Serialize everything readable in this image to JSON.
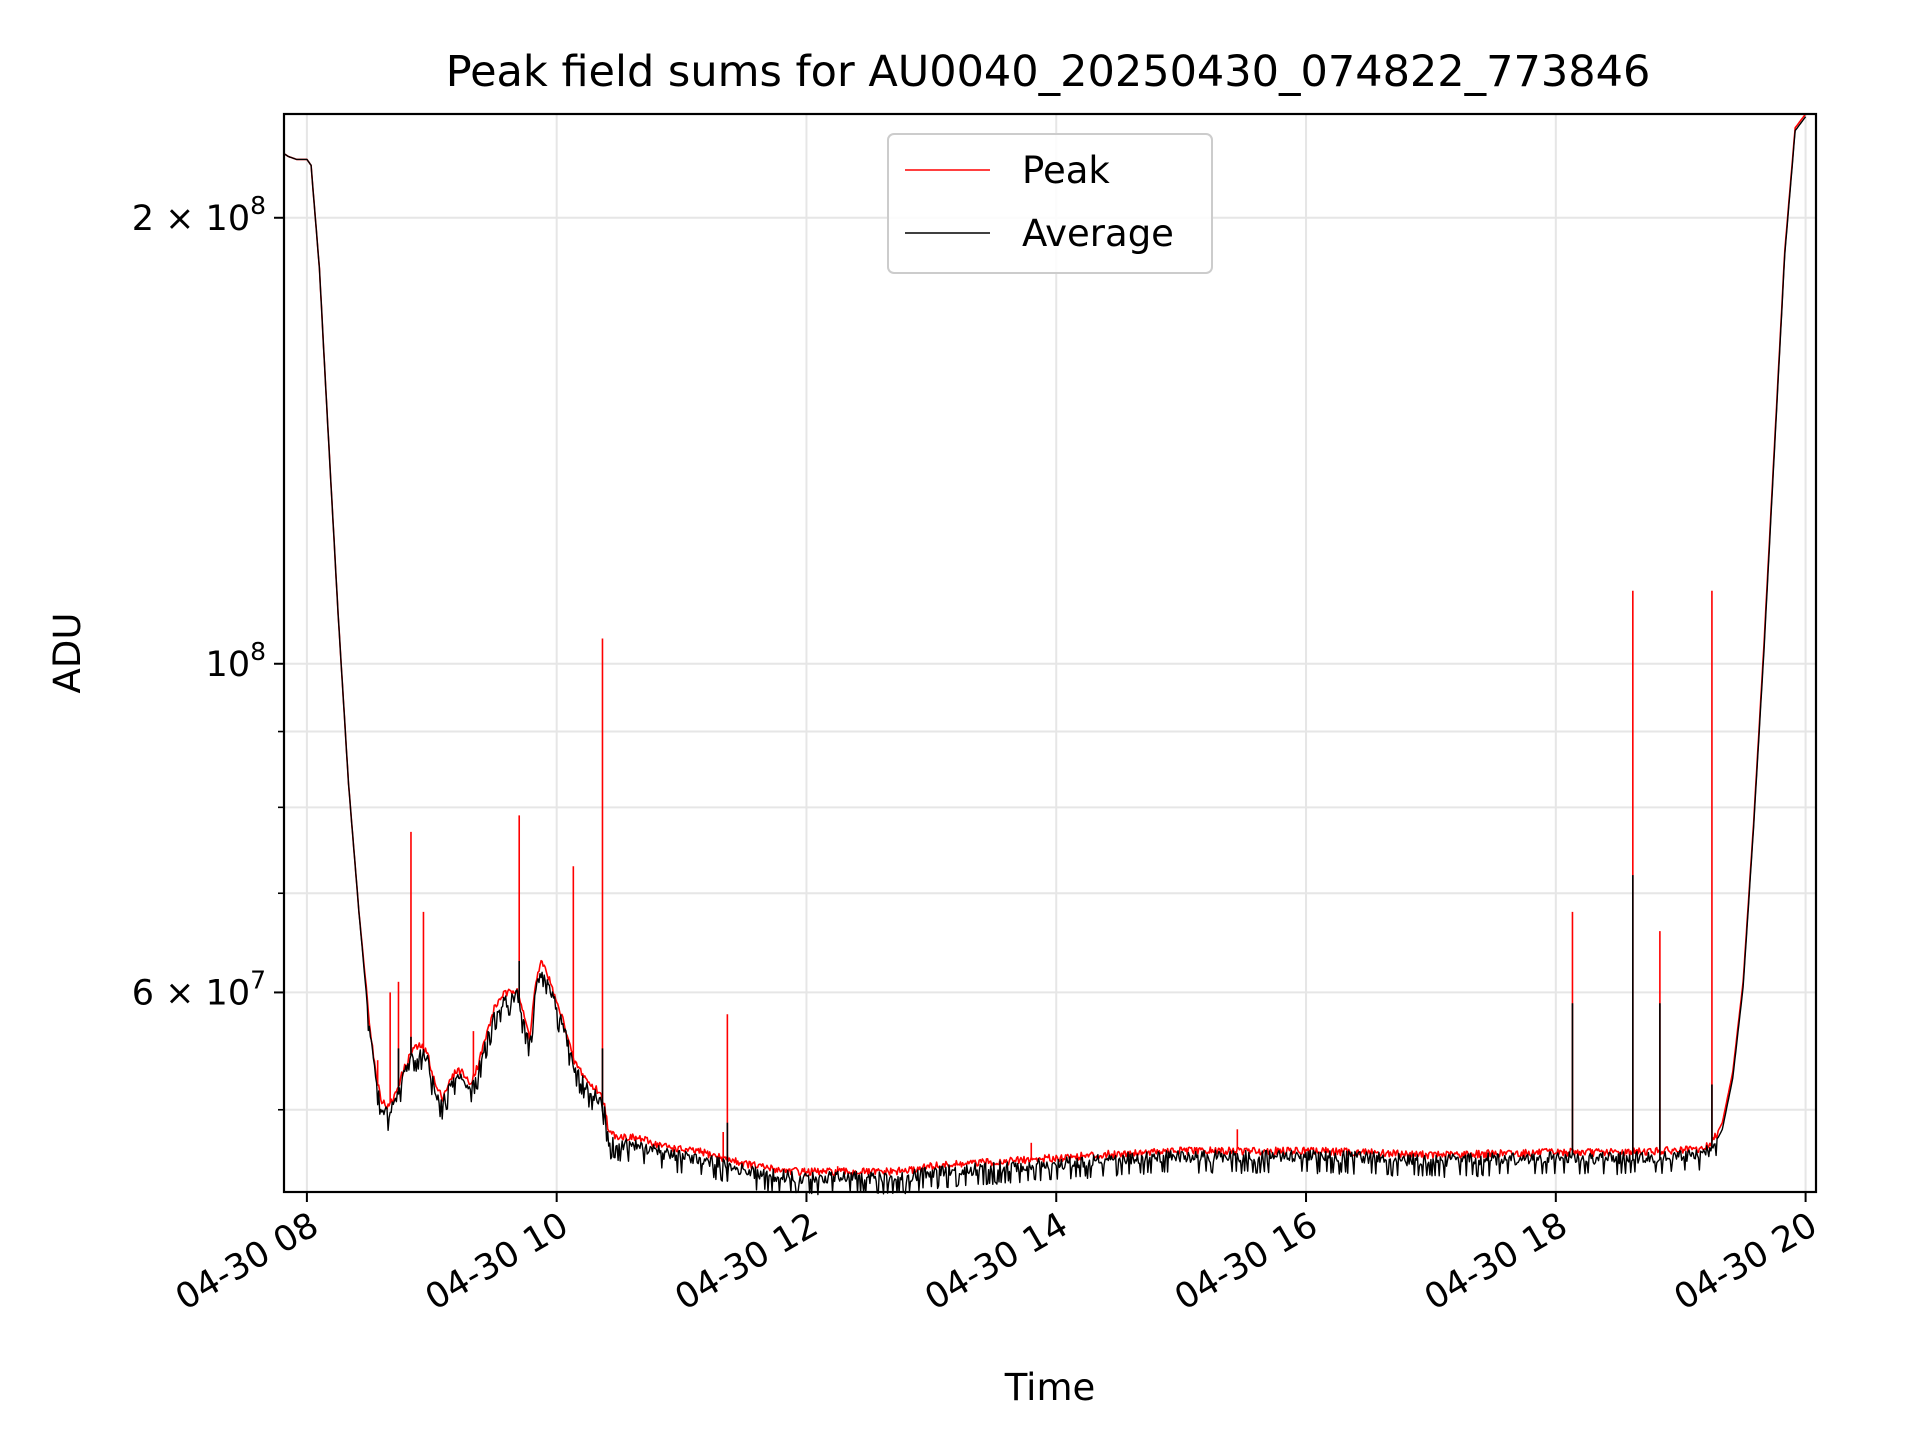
{
  "chart_data": {
    "type": "line",
    "title": "Peak field sums for AU0040_20250430_074822_773846",
    "xlabel": "Time",
    "ylabel": "ADU",
    "y_scale": "log",
    "xlim": [
      "2025-04-30 07:49",
      "2025-04-30 20:05"
    ],
    "ylim": [
      44000000,
      235000000
    ],
    "x_ticks": [
      "04-30 08",
      "04-30 10",
      "04-30 12",
      "04-30 14",
      "04-30 16",
      "04-30 18",
      "04-30 20"
    ],
    "y_ticks_major": [
      {
        "value": 60000000,
        "mantissa": "6",
        "exponent": "7"
      },
      {
        "value": 100000000,
        "mantissa": "",
        "exponent": "8"
      },
      {
        "value": 200000000,
        "mantissa": "2",
        "exponent": "8"
      }
    ],
    "y_ticks_minor": [
      50000000,
      70000000,
      80000000,
      90000000
    ],
    "grid": true,
    "legend_position": "top-center",
    "series": [
      {
        "name": "Peak",
        "color": "#ff0000",
        "points": [
          [
            "07:49",
            221000000
          ],
          [
            "07:51",
            220000000
          ],
          [
            "07:55",
            219000000
          ],
          [
            "08:00",
            219000000
          ],
          [
            "08:02",
            217000000
          ],
          [
            "08:06",
            185000000
          ],
          [
            "08:10",
            145000000
          ],
          [
            "08:15",
            108000000
          ],
          [
            "08:20",
            83000000
          ],
          [
            "08:25",
            68000000
          ],
          [
            "08:30",
            57500000
          ],
          [
            "08:33",
            53000000
          ],
          [
            "08:36",
            50700000
          ],
          [
            "08:39",
            50200000
          ],
          [
            "08:42",
            51000000
          ],
          [
            "08:45",
            52500000
          ],
          [
            "08:48",
            53800000
          ],
          [
            "08:51",
            55000000
          ],
          [
            "08:55",
            55200000
          ],
          [
            "08:58",
            54500000
          ],
          [
            "09:02",
            51800000
          ],
          [
            "09:05",
            51000000
          ],
          [
            "09:08",
            52000000
          ],
          [
            "09:12",
            53200000
          ],
          [
            "09:15",
            53000000
          ],
          [
            "09:18",
            52000000
          ],
          [
            "09:22",
            53500000
          ],
          [
            "09:26",
            56000000
          ],
          [
            "09:30",
            58500000
          ],
          [
            "09:34",
            59800000
          ],
          [
            "09:38",
            60000000
          ],
          [
            "09:41",
            60500000
          ],
          [
            "09:44",
            58000000
          ],
          [
            "09:47",
            56000000
          ],
          [
            "09:50",
            61000000
          ],
          [
            "09:53",
            63000000
          ],
          [
            "09:56",
            61500000
          ],
          [
            "10:00",
            59000000
          ],
          [
            "10:04",
            57000000
          ],
          [
            "10:08",
            54000000
          ],
          [
            "10:12",
            53000000
          ],
          [
            "10:16",
            52000000
          ],
          [
            "10:20",
            51500000
          ],
          [
            "10:23",
            50500000
          ],
          [
            "10:25",
            48200000
          ],
          [
            "10:30",
            48000000
          ],
          [
            "10:40",
            47800000
          ],
          [
            "10:50",
            47300000
          ],
          [
            "11:00",
            47000000
          ],
          [
            "11:10",
            46800000
          ],
          [
            "11:20",
            46400000
          ],
          [
            "11:30",
            46000000
          ],
          [
            "11:40",
            45700000
          ],
          [
            "11:50",
            45500000
          ],
          [
            "12:00",
            45400000
          ],
          [
            "12:20",
            45400000
          ],
          [
            "12:40",
            45400000
          ],
          [
            "12:50",
            45500000
          ],
          [
            "13:00",
            45800000
          ],
          [
            "13:20",
            46000000
          ],
          [
            "13:40",
            46200000
          ],
          [
            "14:00",
            46400000
          ],
          [
            "14:20",
            46600000
          ],
          [
            "14:40",
            46800000
          ],
          [
            "15:00",
            46900000
          ],
          [
            "15:30",
            46900000
          ],
          [
            "16:00",
            46900000
          ],
          [
            "16:30",
            46800000
          ],
          [
            "17:00",
            46600000
          ],
          [
            "17:30",
            46700000
          ],
          [
            "18:00",
            46800000
          ],
          [
            "18:30",
            46800000
          ],
          [
            "18:50",
            46900000
          ],
          [
            "19:10",
            47000000
          ],
          [
            "19:15",
            47500000
          ],
          [
            "19:20",
            49000000
          ],
          [
            "19:25",
            53000000
          ],
          [
            "19:30",
            61000000
          ],
          [
            "19:35",
            78000000
          ],
          [
            "19:40",
            103000000
          ],
          [
            "19:45",
            140000000
          ],
          [
            "19:50",
            190000000
          ],
          [
            "19:55",
            230000000
          ],
          [
            "20:00",
            235000000
          ]
        ],
        "spikes": [
          [
            "08:34",
            54000000
          ],
          [
            "08:40",
            60000000
          ],
          [
            "08:44",
            61000000
          ],
          [
            "08:50",
            77000000
          ],
          [
            "08:56",
            68000000
          ],
          [
            "09:20",
            56500000
          ],
          [
            "09:42",
            79000000
          ],
          [
            "10:08",
            73000000
          ],
          [
            "10:22",
            104000000
          ],
          [
            "11:20",
            48300000
          ],
          [
            "11:22",
            58000000
          ],
          [
            "12:15",
            45800000
          ],
          [
            "13:48",
            47500000
          ],
          [
            "15:27",
            48500000
          ],
          [
            "18:08",
            68000000
          ],
          [
            "18:37",
            112000000
          ],
          [
            "18:50",
            66000000
          ],
          [
            "19:15",
            112000000
          ]
        ]
      },
      {
        "name": "Average",
        "color": "#000000",
        "points": [
          [
            "07:49",
            221000000
          ],
          [
            "07:51",
            220000000
          ],
          [
            "07:55",
            219000000
          ],
          [
            "08:00",
            219000000
          ],
          [
            "08:02",
            217000000
          ],
          [
            "08:06",
            185000000
          ],
          [
            "08:10",
            145000000
          ],
          [
            "08:15",
            108000000
          ],
          [
            "08:20",
            83000000
          ],
          [
            "08:25",
            68000000
          ],
          [
            "08:30",
            56800000
          ],
          [
            "08:33",
            52300000
          ],
          [
            "08:36",
            50000000
          ],
          [
            "08:39",
            49600000
          ],
          [
            "08:42",
            50300000
          ],
          [
            "08:45",
            51800000
          ],
          [
            "08:48",
            53200000
          ],
          [
            "08:51",
            54300000
          ],
          [
            "08:55",
            54500000
          ],
          [
            "08:58",
            53800000
          ],
          [
            "09:02",
            51100000
          ],
          [
            "09:05",
            50400000
          ],
          [
            "09:08",
            51400000
          ],
          [
            "09:12",
            52600000
          ],
          [
            "09:15",
            52400000
          ],
          [
            "09:18",
            51400000
          ],
          [
            "09:22",
            52900000
          ],
          [
            "09:26",
            55300000
          ],
          [
            "09:30",
            57800000
          ],
          [
            "09:34",
            59000000
          ],
          [
            "09:38",
            59200000
          ],
          [
            "09:41",
            59700000
          ],
          [
            "09:44",
            57300000
          ],
          [
            "09:47",
            55300000
          ],
          [
            "09:50",
            60200000
          ],
          [
            "09:53",
            62200000
          ],
          [
            "09:56",
            60700000
          ],
          [
            "10:00",
            58300000
          ],
          [
            "10:04",
            56300000
          ],
          [
            "10:08",
            53300000
          ],
          [
            "10:12",
            52300000
          ],
          [
            "10:16",
            51300000
          ],
          [
            "10:20",
            50800000
          ],
          [
            "10:23",
            49800000
          ],
          [
            "10:25",
            47500000
          ],
          [
            "10:30",
            47300000
          ],
          [
            "10:40",
            47100000
          ],
          [
            "10:50",
            46700000
          ],
          [
            "11:00",
            46400000
          ],
          [
            "11:10",
            46200000
          ],
          [
            "11:20",
            45800000
          ],
          [
            "11:30",
            45400000
          ],
          [
            "11:40",
            45100000
          ],
          [
            "11:50",
            45000000
          ],
          [
            "12:00",
            44900000
          ],
          [
            "12:20",
            44900000
          ],
          [
            "12:40",
            44900000
          ],
          [
            "12:50",
            45000000
          ],
          [
            "13:00",
            45300000
          ],
          [
            "13:20",
            45500000
          ],
          [
            "13:40",
            45700000
          ],
          [
            "14:00",
            45900000
          ],
          [
            "14:20",
            46100000
          ],
          [
            "14:40",
            46300000
          ],
          [
            "15:00",
            46400000
          ],
          [
            "15:30",
            46400000
          ],
          [
            "16:00",
            46400000
          ],
          [
            "16:30",
            46300000
          ],
          [
            "17:00",
            46100000
          ],
          [
            "17:30",
            46200000
          ],
          [
            "18:00",
            46300000
          ],
          [
            "18:30",
            46300000
          ],
          [
            "18:50",
            46400000
          ],
          [
            "19:10",
            46500000
          ],
          [
            "19:15",
            47000000
          ],
          [
            "19:20",
            48500000
          ],
          [
            "19:25",
            52500000
          ],
          [
            "19:30",
            60500000
          ],
          [
            "19:35",
            77500000
          ],
          [
            "19:40",
            102000000
          ],
          [
            "19:45",
            139000000
          ],
          [
            "19:50",
            189000000
          ],
          [
            "19:55",
            229000000
          ],
          [
            "20:00",
            234000000
          ]
        ],
        "spikes": [
          [
            "08:44",
            55000000
          ],
          [
            "08:50",
            56000000
          ],
          [
            "09:42",
            63000000
          ],
          [
            "10:22",
            55000000
          ],
          [
            "11:22",
            49000000
          ],
          [
            "18:08",
            59000000
          ],
          [
            "18:37",
            72000000
          ],
          [
            "18:50",
            59000000
          ],
          [
            "19:15",
            52000000
          ]
        ]
      }
    ]
  }
}
